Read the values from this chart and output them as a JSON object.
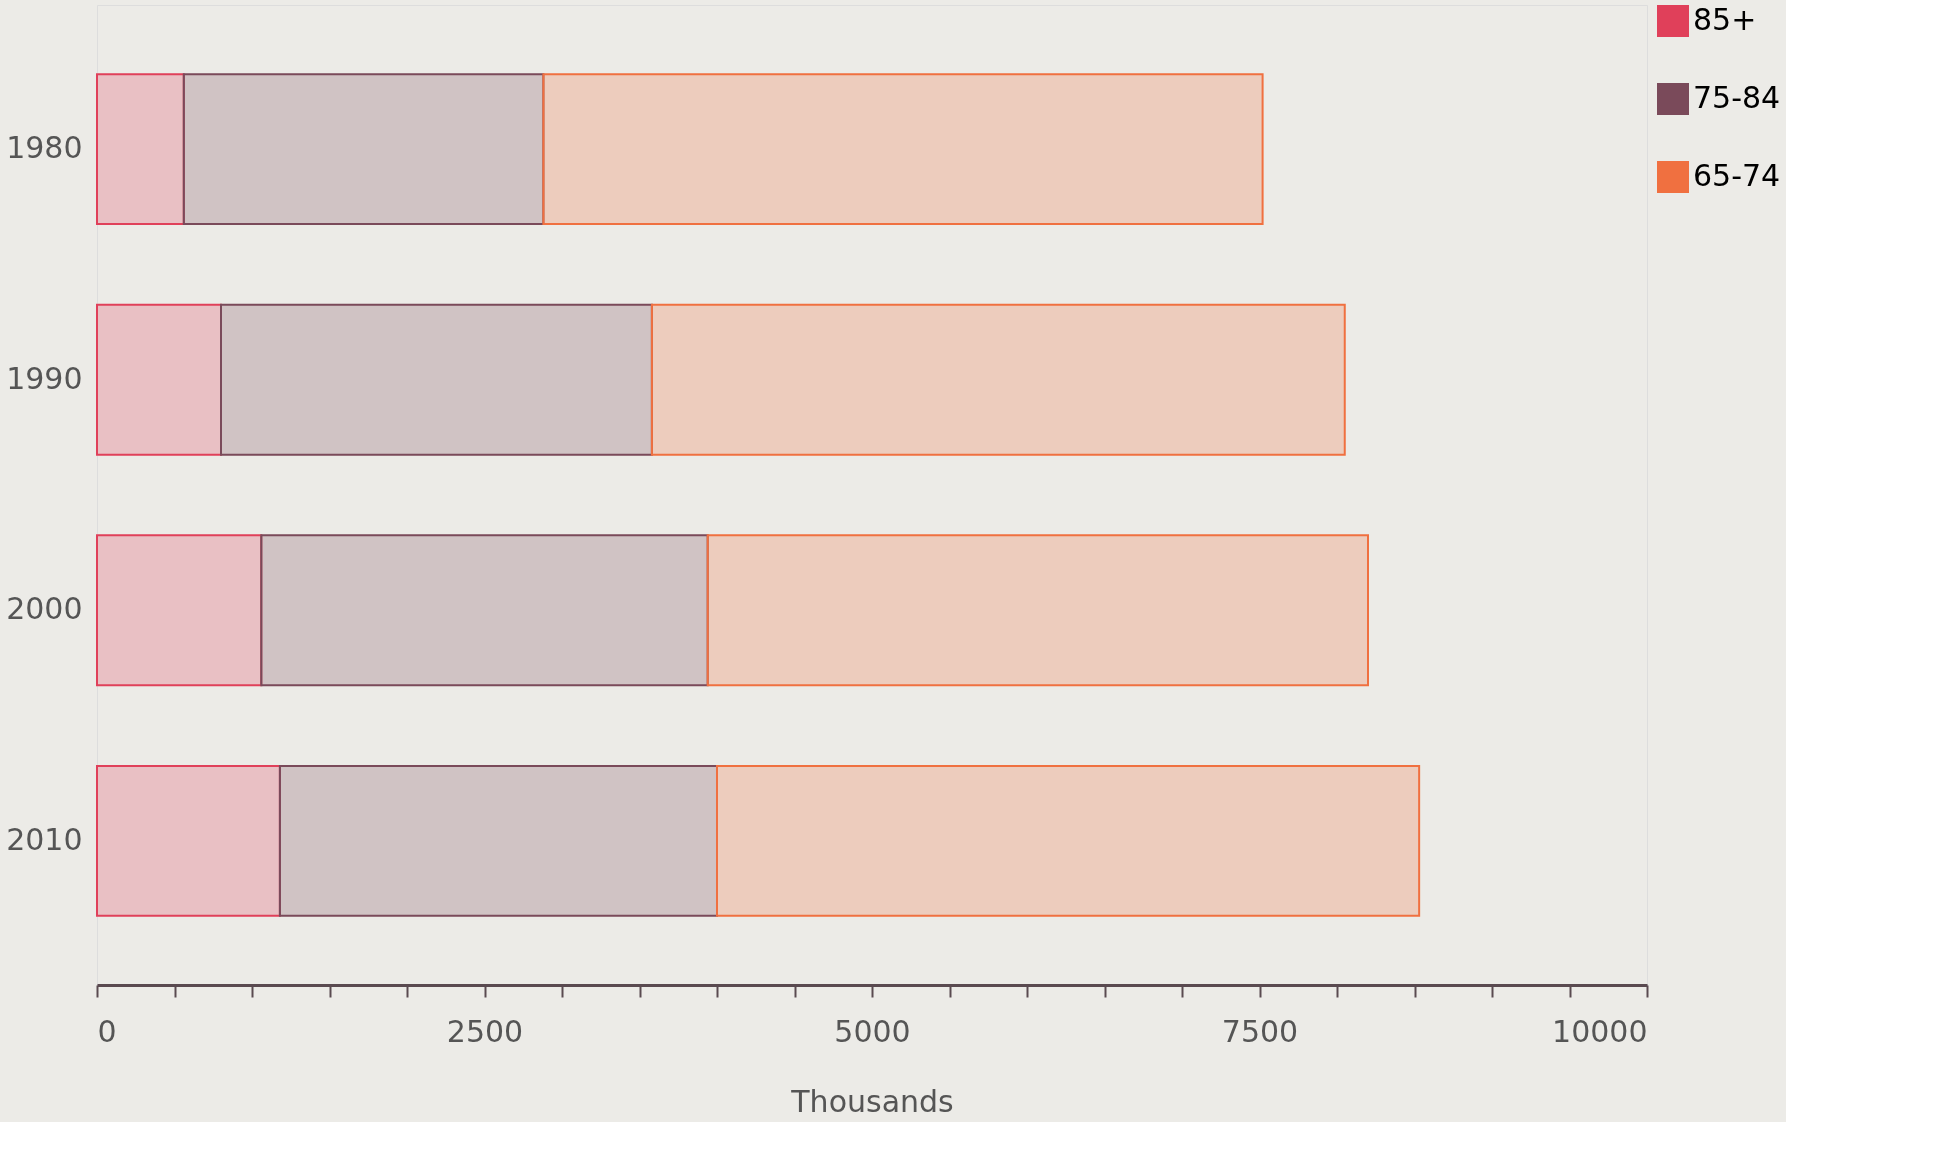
{
  "chart_data": {
    "type": "bar",
    "orientation": "horizontal",
    "stacked": true,
    "categories": [
      "1980",
      "1990",
      "2000",
      "2010"
    ],
    "series": [
      {
        "name": "85+",
        "color": "#e0405a",
        "values": [
          560,
          800,
          1060,
          1180
        ]
      },
      {
        "name": "75-84",
        "color": "#7a4a5a",
        "values": [
          2320,
          2780,
          2880,
          2820
        ]
      },
      {
        "name": "65-74",
        "color": "#f07040",
        "values": [
          4640,
          4470,
          4260,
          4530
        ]
      }
    ],
    "xlabel": "Thousands",
    "xlim": [
      0,
      10000
    ],
    "xticks": [
      0,
      {
        "value": 500,
        "label": null
      },
      {
        "value": 1000,
        "label": null
      },
      {
        "value": 1500,
        "label": null
      },
      {
        "value": 2000,
        "label": null
      },
      2500,
      {
        "value": 3000,
        "label": null
      },
      {
        "value": 3500,
        "label": null
      },
      {
        "value": 4000,
        "label": null
      },
      {
        "value": 4500,
        "label": null
      },
      5000,
      {
        "value": 5500,
        "label": null
      },
      {
        "value": 6000,
        "label": null
      },
      {
        "value": 6500,
        "label": null
      },
      {
        "value": 7000,
        "label": null
      },
      7500,
      {
        "value": 8000,
        "label": null
      },
      {
        "value": 8500,
        "label": null
      },
      {
        "value": 9000,
        "label": null
      },
      {
        "value": 9500,
        "label": null
      },
      10000
    ],
    "grid": false,
    "legend": "right"
  }
}
